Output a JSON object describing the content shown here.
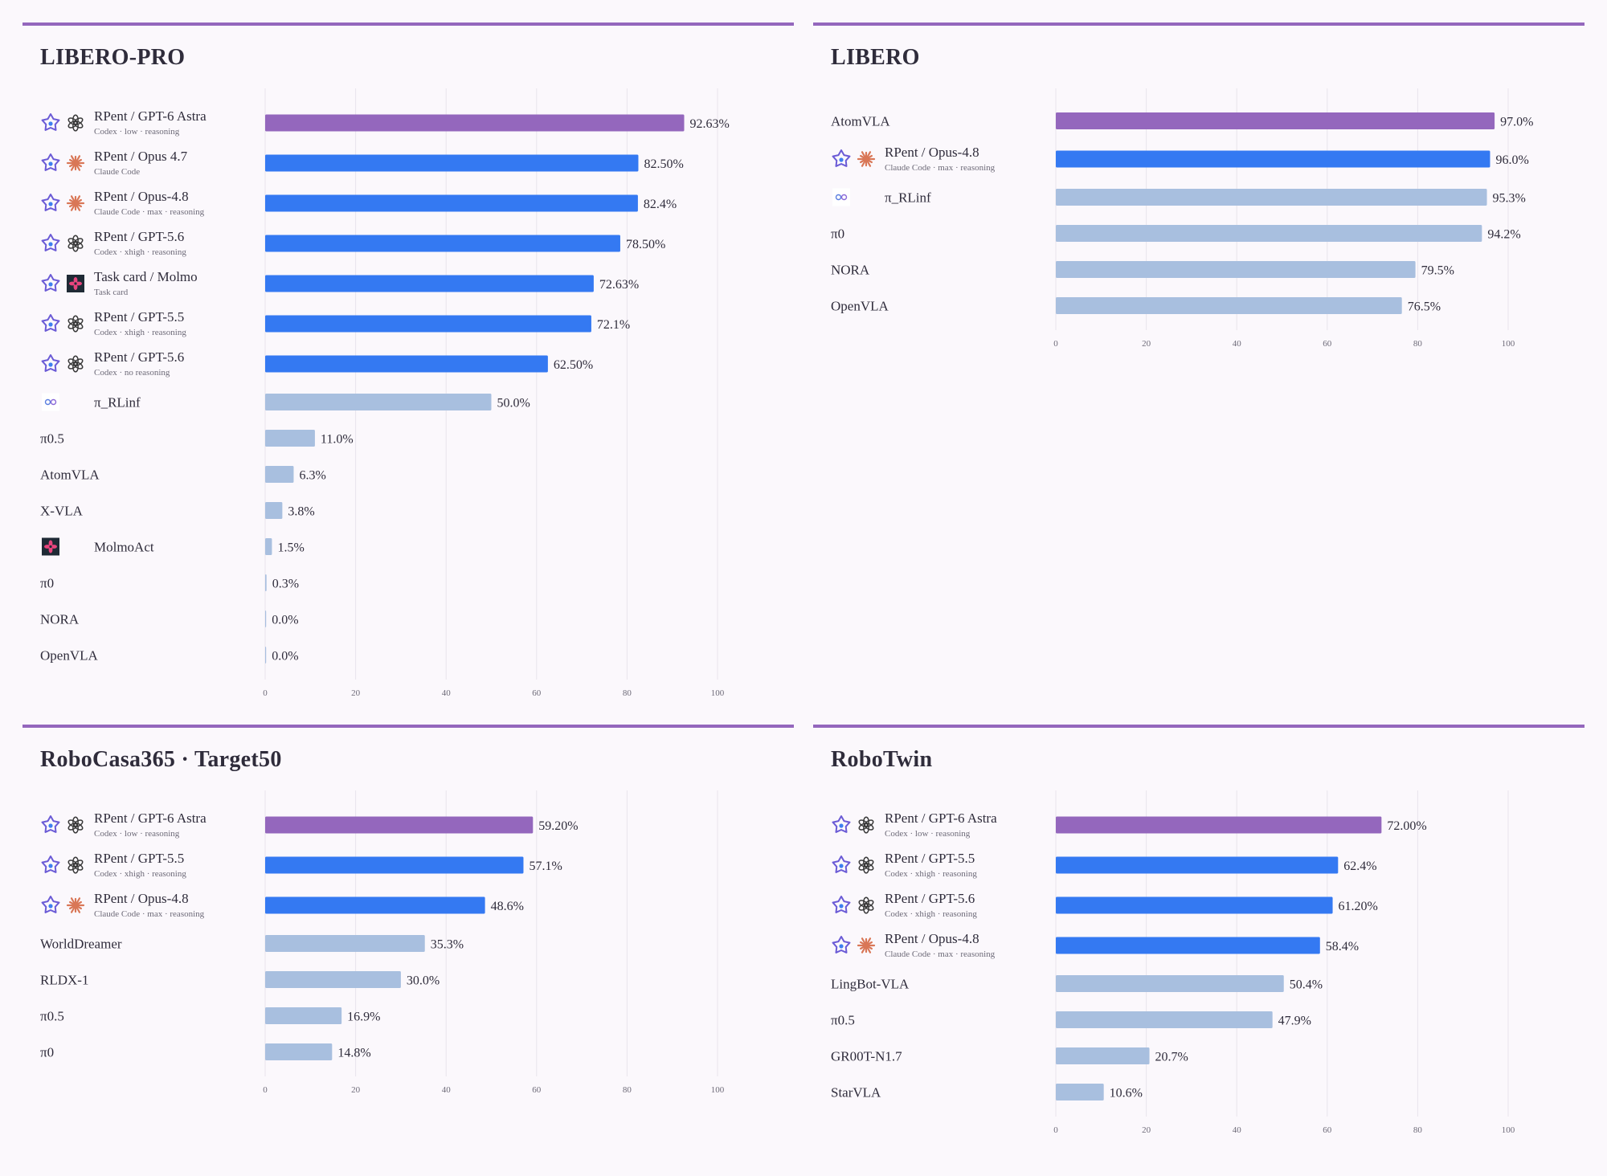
{
  "colors": {
    "highlight": "#9467bd",
    "primary": "#3479f2",
    "baseline": "#a8bfdf",
    "rule": "#9467bd"
  },
  "chart_data": [
    {
      "type": "bar",
      "orientation": "horizontal",
      "title": "LIBERO-PRO",
      "xlim": [
        0,
        100
      ],
      "ticks": [
        0,
        20,
        40,
        60,
        80,
        100
      ],
      "grid": true,
      "bars": [
        {
          "name": "RPent / GPT-6 Astra",
          "sub": "Codex · low · reasoning",
          "value": 92.63,
          "label": "92.63%",
          "group": "highlight",
          "icons": [
            "rpent-icon",
            "openai-icon"
          ]
        },
        {
          "name": "RPent / Opus 4.7",
          "sub": "Claude Code",
          "value": 82.5,
          "label": "82.50%",
          "group": "primary",
          "icons": [
            "rpent-icon",
            "claude-icon"
          ]
        },
        {
          "name": "RPent / Opus-4.8",
          "sub": "Claude Code · max · reasoning",
          "value": 82.4,
          "label": "82.4%",
          "group": "primary",
          "icons": [
            "rpent-icon",
            "claude-icon"
          ]
        },
        {
          "name": "RPent / GPT-5.6",
          "sub": "Codex · xhigh · reasoning",
          "value": 78.5,
          "label": "78.50%",
          "group": "primary",
          "icons": [
            "rpent-icon",
            "openai-icon"
          ]
        },
        {
          "name": "Task card / Molmo",
          "sub": "Task card",
          "value": 72.63,
          "label": "72.63%",
          "group": "primary",
          "icons": [
            "rpent-icon",
            "molmo-icon"
          ]
        },
        {
          "name": "RPent / GPT-5.5",
          "sub": "Codex · xhigh · reasoning",
          "value": 72.1,
          "label": "72.1%",
          "group": "primary",
          "icons": [
            "rpent-icon",
            "openai-icon"
          ]
        },
        {
          "name": "RPent / GPT-5.6",
          "sub": "Codex · no reasoning",
          "value": 62.5,
          "label": "62.50%",
          "group": "primary",
          "icons": [
            "rpent-icon",
            "openai-icon"
          ]
        },
        {
          "name": "π_RLinf",
          "sub": "",
          "value": 50.0,
          "label": "50.0%",
          "group": "baseline",
          "icons": [
            "rlinf-icon"
          ]
        },
        {
          "name": "π0.5",
          "sub": "",
          "value": 11.0,
          "label": "11.0%",
          "group": "baseline",
          "icons": []
        },
        {
          "name": "AtomVLA",
          "sub": "",
          "value": 6.3,
          "label": "6.3%",
          "group": "baseline",
          "icons": []
        },
        {
          "name": "X-VLA",
          "sub": "",
          "value": 3.8,
          "label": "3.8%",
          "group": "baseline",
          "icons": []
        },
        {
          "name": "MolmoAct",
          "sub": "",
          "value": 1.5,
          "label": "1.5%",
          "group": "baseline",
          "icons": [
            "molmo-icon"
          ]
        },
        {
          "name": "π0",
          "sub": "",
          "value": 0.3,
          "label": "0.3%",
          "group": "baseline",
          "icons": []
        },
        {
          "name": "NORA",
          "sub": "",
          "value": 0.0,
          "label": "0.0%",
          "group": "baseline",
          "icons": []
        },
        {
          "name": "OpenVLA",
          "sub": "",
          "value": 0.0,
          "label": "0.0%",
          "group": "baseline",
          "icons": []
        }
      ]
    },
    {
      "type": "bar",
      "orientation": "horizontal",
      "title": "LIBERO",
      "xlim": [
        0,
        100
      ],
      "ticks": [
        0,
        20,
        40,
        60,
        80,
        100
      ],
      "grid": true,
      "bars": [
        {
          "name": "AtomVLA",
          "sub": "",
          "value": 97.0,
          "label": "97.0%",
          "group": "highlight",
          "icons": []
        },
        {
          "name": "RPent / Opus-4.8",
          "sub": "Claude Code · max · reasoning",
          "value": 96.0,
          "label": "96.0%",
          "group": "primary",
          "icons": [
            "rpent-icon",
            "claude-icon"
          ]
        },
        {
          "name": "π_RLinf",
          "sub": "",
          "value": 95.3,
          "label": "95.3%",
          "group": "baseline",
          "icons": [
            "rlinf-icon"
          ]
        },
        {
          "name": "π0",
          "sub": "",
          "value": 94.2,
          "label": "94.2%",
          "group": "baseline",
          "icons": []
        },
        {
          "name": "NORA",
          "sub": "",
          "value": 79.5,
          "label": "79.5%",
          "group": "baseline",
          "icons": []
        },
        {
          "name": "OpenVLA",
          "sub": "",
          "value": 76.5,
          "label": "76.5%",
          "group": "baseline",
          "icons": []
        }
      ]
    },
    {
      "type": "bar",
      "orientation": "horizontal",
      "title": "RoboCasa365 · Target50",
      "xlim": [
        0,
        100
      ],
      "ticks": [
        0,
        20,
        40,
        60,
        80,
        100
      ],
      "grid": true,
      "bars": [
        {
          "name": "RPent / GPT-6 Astra",
          "sub": "Codex · low · reasoning",
          "value": 59.2,
          "label": "59.20%",
          "group": "highlight",
          "icons": [
            "rpent-icon",
            "openai-icon"
          ]
        },
        {
          "name": "RPent / GPT-5.5",
          "sub": "Codex · xhigh · reasoning",
          "value": 57.1,
          "label": "57.1%",
          "group": "primary",
          "icons": [
            "rpent-icon",
            "openai-icon"
          ]
        },
        {
          "name": "RPent / Opus-4.8",
          "sub": "Claude Code · max · reasoning",
          "value": 48.6,
          "label": "48.6%",
          "group": "primary",
          "icons": [
            "rpent-icon",
            "claude-icon"
          ]
        },
        {
          "name": "WorldDreamer",
          "sub": "",
          "value": 35.3,
          "label": "35.3%",
          "group": "baseline",
          "icons": []
        },
        {
          "name": "RLDX-1",
          "sub": "",
          "value": 30.0,
          "label": "30.0%",
          "group": "baseline",
          "icons": []
        },
        {
          "name": "π0.5",
          "sub": "",
          "value": 16.9,
          "label": "16.9%",
          "group": "baseline",
          "icons": []
        },
        {
          "name": "π0",
          "sub": "",
          "value": 14.8,
          "label": "14.8%",
          "group": "baseline",
          "icons": []
        }
      ]
    },
    {
      "type": "bar",
      "orientation": "horizontal",
      "title": "RoboTwin",
      "xlim": [
        0,
        100
      ],
      "ticks": [
        0,
        20,
        40,
        60,
        80,
        100
      ],
      "grid": true,
      "bars": [
        {
          "name": "RPent / GPT-6 Astra",
          "sub": "Codex · low · reasoning",
          "value": 72.0,
          "label": "72.00%",
          "group": "highlight",
          "icons": [
            "rpent-icon",
            "openai-icon"
          ]
        },
        {
          "name": "RPent / GPT-5.5",
          "sub": "Codex · xhigh · reasoning",
          "value": 62.4,
          "label": "62.4%",
          "group": "primary",
          "icons": [
            "rpent-icon",
            "openai-icon"
          ]
        },
        {
          "name": "RPent / GPT-5.6",
          "sub": "Codex · xhigh · reasoning",
          "value": 61.2,
          "label": "61.20%",
          "group": "primary",
          "icons": [
            "rpent-icon",
            "openai-icon"
          ]
        },
        {
          "name": "RPent / Opus-4.8",
          "sub": "Claude Code · max · reasoning",
          "value": 58.4,
          "label": "58.4%",
          "group": "primary",
          "icons": [
            "rpent-icon",
            "claude-icon"
          ]
        },
        {
          "name": "LingBot-VLA",
          "sub": "",
          "value": 50.4,
          "label": "50.4%",
          "group": "baseline",
          "icons": []
        },
        {
          "name": "π0.5",
          "sub": "",
          "value": 47.9,
          "label": "47.9%",
          "group": "baseline",
          "icons": []
        },
        {
          "name": "GR00T-N1.7",
          "sub": "",
          "value": 20.7,
          "label": "20.7%",
          "group": "baseline",
          "icons": []
        },
        {
          "name": "StarVLA",
          "sub": "",
          "value": 10.6,
          "label": "10.6%",
          "group": "baseline",
          "icons": []
        }
      ]
    }
  ]
}
